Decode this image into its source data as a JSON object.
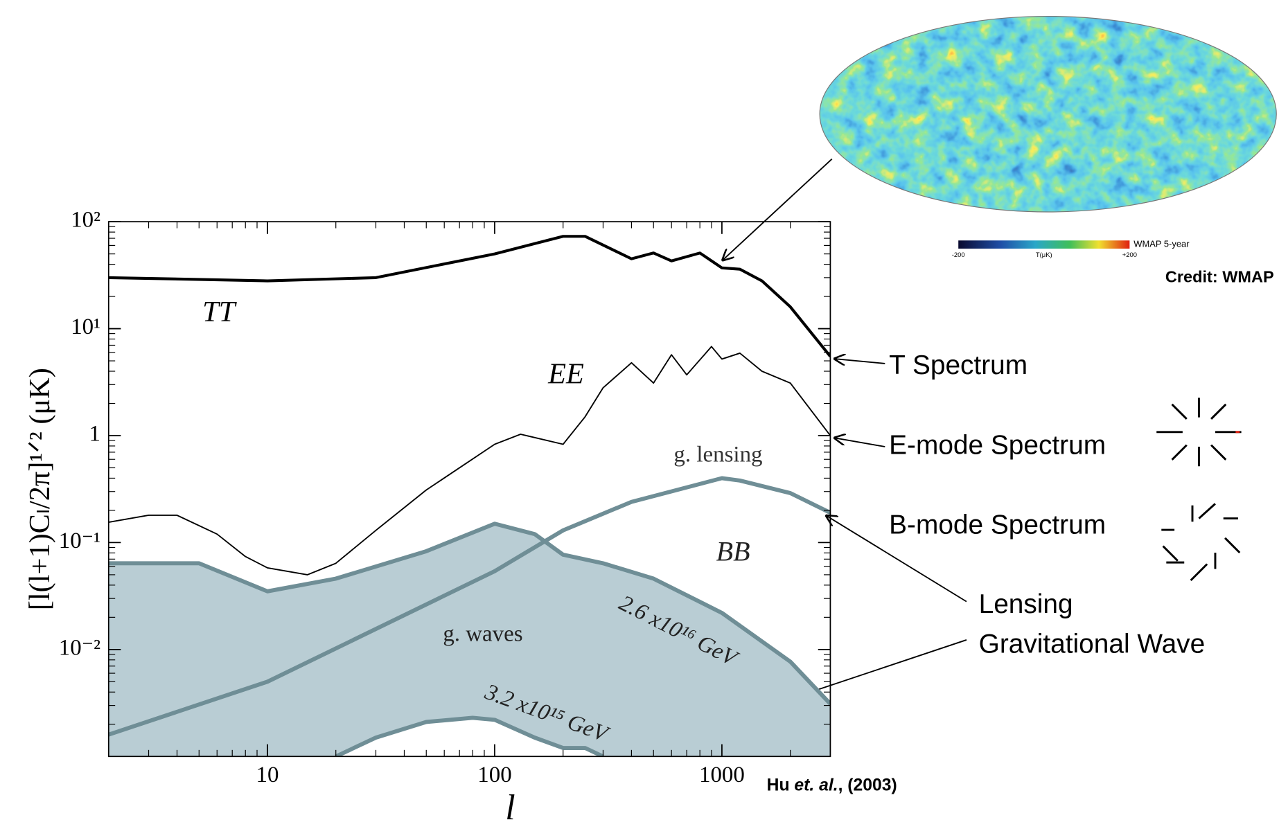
{
  "chart_data": {
    "type": "line",
    "log_x": true,
    "log_y": true,
    "x_label": "l",
    "y_label": "[l(l+1)Cₗ/2π]¹ᐟ² (μK)",
    "xlim": [
      2,
      3000
    ],
    "ylim": [
      0.001,
      100
    ],
    "xticks": [
      10,
      100,
      1000
    ],
    "yticks": [
      {
        "value": 100,
        "label": "10²"
      },
      {
        "value": 10,
        "label": "10¹"
      },
      1,
      {
        "value": 0.1,
        "label": "10⁻¹"
      },
      {
        "value": 0.01,
        "label": "10⁻²"
      }
    ],
    "annotations": [
      "BB",
      "g. waves"
    ],
    "series": [
      {
        "name": "TT",
        "color": "#000000",
        "x": [
          2,
          10,
          30,
          100,
          200,
          250,
          400,
          500,
          600,
          800,
          1000,
          1200,
          1500,
          2000,
          3000
        ],
        "values": [
          30,
          28,
          30,
          50,
          73,
          73,
          45,
          51,
          43,
          51,
          37,
          36,
          28,
          16,
          5.5
        ]
      },
      {
        "name": "EE",
        "color": "#000000",
        "x": [
          2,
          3,
          4,
          6,
          8,
          10,
          15,
          20,
          30,
          50,
          100,
          130,
          200,
          250,
          300,
          400,
          500,
          600,
          700,
          900,
          1000,
          1200,
          1500,
          2000,
          3000
        ],
        "values": [
          0.155,
          0.18,
          0.18,
          0.12,
          0.074,
          0.058,
          0.05,
          0.064,
          0.13,
          0.31,
          0.83,
          1.03,
          0.83,
          1.5,
          2.8,
          4.8,
          3.1,
          5.7,
          3.7,
          6.8,
          5.2,
          5.9,
          4.0,
          3.1,
          1.0
        ]
      },
      {
        "name": "g. lensing",
        "color": "#6f8e96",
        "x": [
          2,
          10,
          100,
          200,
          400,
          1000,
          1200,
          2000,
          3000
        ],
        "values": [
          0.0016,
          0.005,
          0.054,
          0.13,
          0.24,
          0.4,
          0.38,
          0.29,
          0.19
        ]
      },
      {
        "name": "2.6 x10¹⁶ GeV",
        "color": "#6f8e96",
        "fill": "#b9cdd4",
        "x": [
          2,
          5,
          10,
          20,
          50,
          100,
          150,
          200,
          300,
          500,
          1000,
          2000,
          3000
        ],
        "values": [
          0.064,
          0.064,
          0.035,
          0.046,
          0.083,
          0.15,
          0.12,
          0.077,
          0.064,
          0.046,
          0.022,
          0.0077,
          0.0031
        ]
      },
      {
        "name": "3.2 x10¹⁵ GeV",
        "color": "#6f8e96",
        "x": [
          20,
          30,
          50,
          80,
          100,
          150,
          200,
          250,
          300
        ],
        "values": [
          0.001,
          0.0015,
          0.0021,
          0.0023,
          0.0022,
          0.0015,
          0.0012,
          0.0012,
          0.001
        ]
      }
    ]
  },
  "slide": {
    "labels": [
      "T Spectrum",
      "E-mode Spectrum",
      "B-mode Spectrum",
      "Lensing",
      "Gravitational Wave"
    ],
    "map_credit": "Credit: WMAP",
    "colorbar": {
      "min": "-200",
      "unit": "T(μK)",
      "max": "+200",
      "title": "WMAP 5-year"
    },
    "citation": [
      "Hu ",
      "et. al.",
      ", (2003)"
    ]
  }
}
